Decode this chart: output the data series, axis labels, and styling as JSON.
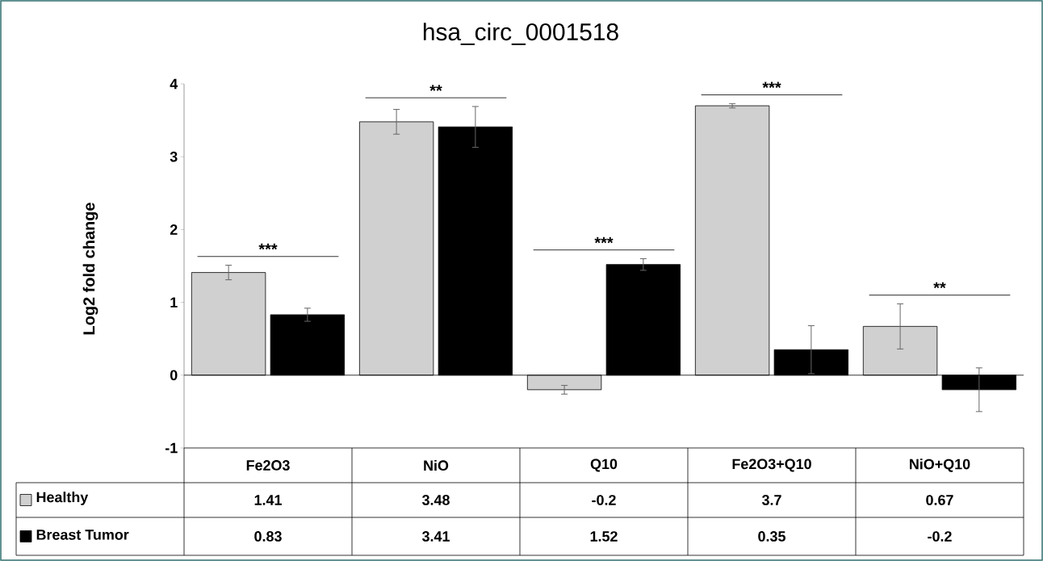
{
  "chart_data": {
    "type": "bar",
    "title": "hsa_circ_0001518",
    "ylabel": "Log2 fold change",
    "categories": [
      "Fe2O3",
      "NiO",
      "Q10",
      "Fe2O3+Q10",
      "NiO+Q10"
    ],
    "series": [
      {
        "name": "Healthy",
        "color": "#d0d0d0",
        "values": [
          1.41,
          3.48,
          -0.2,
          3.7,
          0.67
        ],
        "errors": [
          0.1,
          0.17,
          0.06,
          0.03,
          0.31
        ]
      },
      {
        "name": "Breast Tumor",
        "color": "#000000",
        "values": [
          0.83,
          3.41,
          1.52,
          0.35,
          -0.2
        ],
        "errors": [
          0.09,
          0.28,
          0.08,
          0.33,
          0.3
        ]
      }
    ],
    "ylim": [
      -1,
      4
    ],
    "yticks": [
      -1,
      0,
      1,
      2,
      3,
      4
    ],
    "annotations": [
      "***",
      "**",
      "***",
      "***",
      "**"
    ],
    "data_labels": true,
    "legend": "bottom left"
  }
}
